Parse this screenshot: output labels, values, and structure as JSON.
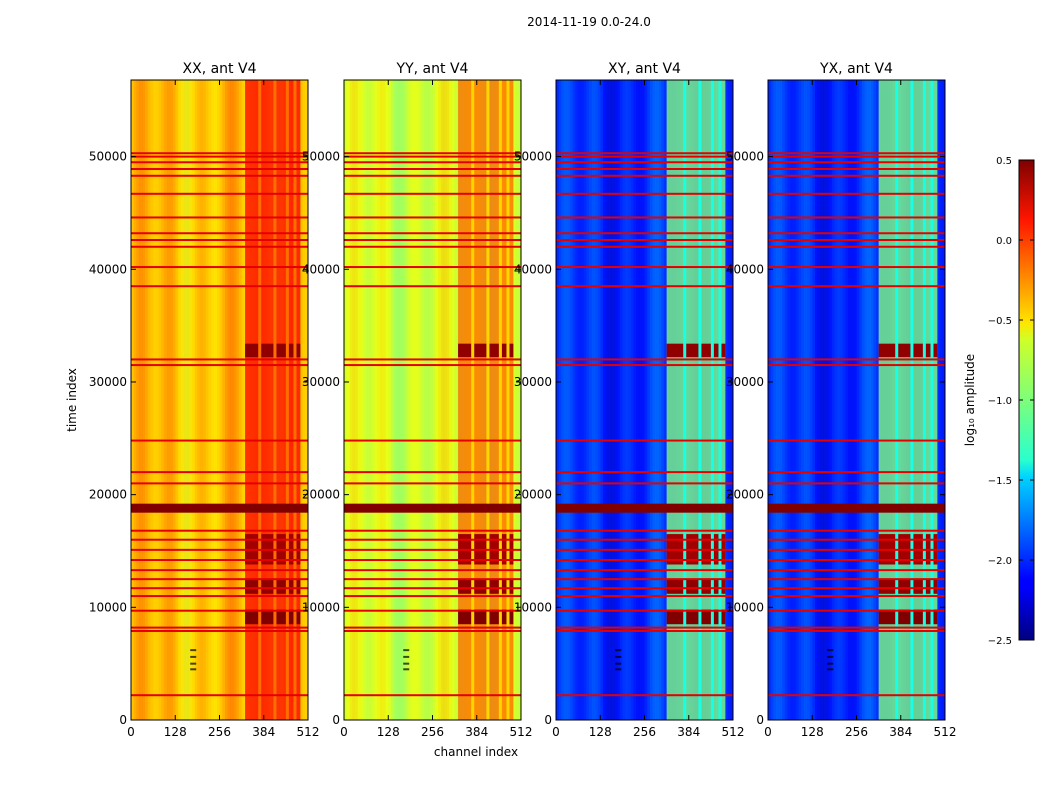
{
  "figure": {
    "suptitle": "2014-11-19 0.0-24.0",
    "ylabel": "time index",
    "xlabel": "channel index"
  },
  "colorbar": {
    "label": "log₁₀ amplitude",
    "range": [
      -2.5,
      0.5
    ],
    "ticks": [
      0.5,
      0.0,
      -0.5,
      -1.0,
      -1.5,
      -2.0,
      -2.5
    ],
    "tick_labels": [
      "0.5",
      "0.0",
      "−0.5",
      "−1.0",
      "−1.5",
      "−2.0",
      "−2.5"
    ],
    "colormap": "jet"
  },
  "chart_data": [
    {
      "type": "heatmap",
      "title": "XX, ant V4",
      "xlabel": "",
      "ylabel": "time index",
      "xlim": [
        0,
        512
      ],
      "ylim": [
        0,
        56800
      ],
      "xticks": [
        0,
        128,
        256,
        384,
        512
      ],
      "yticks": [
        0,
        10000,
        20000,
        30000,
        40000,
        50000
      ],
      "base_level": -0.45,
      "active_band_channels": [
        330,
        490
      ],
      "active_band_level": 0.1,
      "flagged_rows_level": 0.5
    },
    {
      "type": "heatmap",
      "title": "YY, ant V4",
      "xlabel": "channel index",
      "ylabel": "",
      "xlim": [
        0,
        512
      ],
      "ylim": [
        0,
        56800
      ],
      "xticks": [
        0,
        128,
        256,
        384,
        512
      ],
      "yticks": [
        0,
        10000,
        20000,
        30000,
        40000,
        50000
      ],
      "base_level": -0.75,
      "active_band_channels": [
        330,
        490
      ],
      "active_band_level": -0.2,
      "flagged_rows_level": 0.5
    },
    {
      "type": "heatmap",
      "title": "XY, ant V4",
      "xlabel": "",
      "ylabel": "",
      "xlim": [
        0,
        512
      ],
      "ylim": [
        0,
        56800
      ],
      "xticks": [
        0,
        128,
        256,
        384,
        512
      ],
      "yticks": [
        0,
        10000,
        20000,
        30000,
        40000,
        50000
      ],
      "base_level": -2.0,
      "active_band_channels": [
        320,
        490
      ],
      "active_band_level": -1.0,
      "flagged_rows_level": 0.5
    },
    {
      "type": "heatmap",
      "title": "YX, ant V4",
      "xlabel": "",
      "ylabel": "",
      "xlim": [
        0,
        512
      ],
      "ylim": [
        0,
        56800
      ],
      "xticks": [
        0,
        128,
        256,
        384,
        512
      ],
      "yticks": [
        0,
        10000,
        20000,
        30000,
        40000,
        50000
      ],
      "base_level": -2.0,
      "active_band_channels": [
        320,
        490
      ],
      "active_band_level": -1.0,
      "flagged_rows_level": 0.5
    }
  ],
  "shared": {
    "flagged_time_rows": [
      2200,
      7900,
      8200,
      9700,
      11000,
      11700,
      12500,
      13300,
      14200,
      15100,
      16000,
      16800,
      18700,
      21000,
      22000,
      24800,
      31500,
      32000,
      38500,
      40200,
      42000,
      42600,
      43200,
      44600,
      46700,
      48300,
      48900,
      49500,
      50000,
      50300
    ],
    "thick_flag_band": [
      18400,
      19200
    ],
    "high_amplitude_blocks": [
      {
        "t": [
          8500,
          9800
        ],
        "level": 0.5
      },
      {
        "t": [
          11200,
          12500
        ],
        "level": 0.45
      },
      {
        "t": [
          13800,
          16500
        ],
        "level": 0.4
      },
      {
        "t": [
          32200,
          33400
        ],
        "level": 0.45
      }
    ],
    "channel_gaps": [
      368,
      412,
      448,
      470
    ],
    "rfi_spot_channel": 180,
    "rfi_spot_times": [
      4500,
      5000,
      5600,
      6200
    ]
  }
}
